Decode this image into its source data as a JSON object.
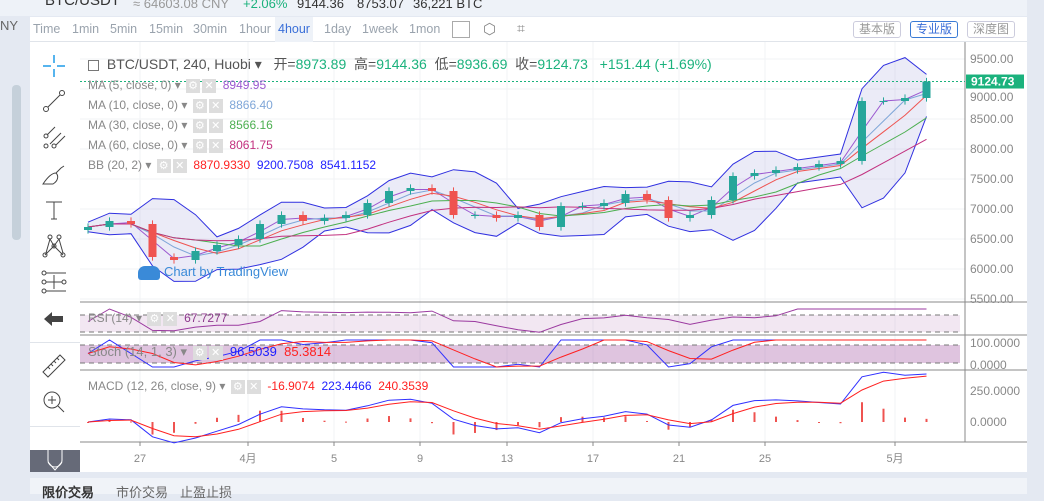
{
  "ticker": {
    "symbol": "BTC/USDT",
    "cny": "≈ 64603.08 CNY",
    "change": "+2.06%",
    "high": "9144.36",
    "low": "8753.07",
    "volume": "36,221 BTC",
    "left_cut": "NY"
  },
  "toolbar": {
    "timeframes": [
      "Time",
      "1min",
      "5min",
      "15min",
      "30min",
      "1hour",
      "4hour",
      "1day",
      "1week",
      "1mon"
    ],
    "active": "4hour",
    "views": [
      "基本版",
      "专业版",
      "深度图"
    ],
    "active_view": "专业版"
  },
  "tools": [
    "crosshair-icon",
    "trend-line-icon",
    "pitchfork-icon",
    "brush-icon",
    "text-icon",
    "pattern-icon",
    "measure-lines-icon",
    "back-arrow-icon",
    "ruler-icon",
    "zoom-in-icon",
    "magnet-icon"
  ],
  "legend": {
    "title": "BTC/USDT, 240, Huobi",
    "open_label": "开=",
    "open": "8973.89",
    "high_label": "高=",
    "high": "9144.36",
    "low_label": "低=",
    "low": "8936.69",
    "close_label": "收=",
    "close": "9124.73",
    "change": "+151.44 (+1.69%)",
    "ma5": {
      "label": "MA (5, close, 0)",
      "value": "8949.95",
      "color": "#9b59d0"
    },
    "ma10": {
      "label": "MA (10, close, 0)",
      "value": "8866.40",
      "color": "#7fa6d8"
    },
    "ma30": {
      "label": "MA (30, close, 0)",
      "value": "8566.16",
      "color": "#4caf50"
    },
    "ma60": {
      "label": "MA (60, close, 0)",
      "value": "8061.75",
      "color": "#c2307f"
    },
    "bb": {
      "label": "BB (20, 2)",
      "mid": "8870.9330",
      "upper": "9200.7508",
      "lower": "8541.1152"
    },
    "rsi": {
      "label": "RSI (14)",
      "value": "67.7277"
    },
    "stoch": {
      "label": "Stoch (14, 1, 3)",
      "k": "96.5039",
      "d": "85.3814"
    },
    "macd": {
      "label": "MACD (12, 26, close, 9)",
      "hist": "-16.9074",
      "macd": "223.4466",
      "signal": "240.3539"
    }
  },
  "watermark": "Chart by TradingView",
  "colors": {
    "up": "#26a69a",
    "down": "#ef5350",
    "last_price_bg": "#1bb27d"
  },
  "chart_data": {
    "type": "candlestick",
    "x_ticks": [
      "27",
      "4月",
      "5",
      "9",
      "13",
      "17",
      "21",
      "25",
      "5月"
    ],
    "y_ticks": [
      "9500.00",
      "9000.00",
      "8500.00",
      "8000.00",
      "7500.00",
      "7000.00",
      "6500.00",
      "6000.00",
      "5500.00"
    ],
    "ylim": [
      5500,
      9700
    ],
    "last_price": "9124.73",
    "closes": [
      6700,
      6800,
      6750,
      6200,
      6150,
      6300,
      6400,
      6500,
      6750,
      6900,
      6800,
      6850,
      6900,
      7100,
      7300,
      7350,
      7300,
      6900,
      6900,
      6850,
      6900,
      6700,
      7050,
      7050,
      7100,
      7250,
      7150,
      6850,
      6900,
      7150,
      7550,
      7600,
      7650,
      7700,
      7750,
      7800,
      8800,
      8800,
      8850,
      9124.73
    ],
    "rsi_ticks": [],
    "stoch_ticks": [
      "100.0000",
      "0.0000"
    ],
    "macd_ticks": [
      "250.0000",
      "0.0000"
    ]
  },
  "bottom": {
    "tabs": [
      "限价交易",
      "市价交易",
      "止盈止损"
    ]
  }
}
